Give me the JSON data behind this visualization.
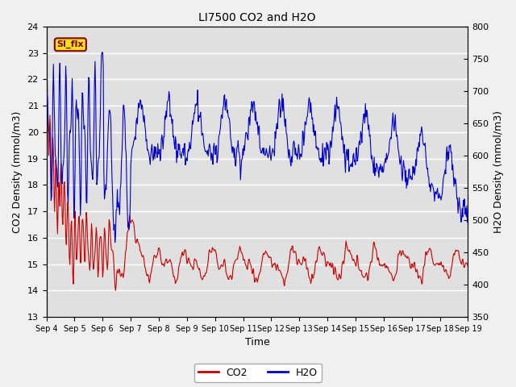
{
  "title": "LI7500 CO2 and H2O",
  "xlabel": "Time",
  "ylabel_left": "CO2 Density (mmol/m3)",
  "ylabel_right": "H2O Density (mmol/m3)",
  "ylim_left": [
    13.0,
    24.0
  ],
  "ylim_right": [
    350,
    800
  ],
  "yticks_left": [
    13.0,
    14.0,
    15.0,
    16.0,
    17.0,
    18.0,
    19.0,
    20.0,
    21.0,
    22.0,
    23.0,
    24.0
  ],
  "yticks_right": [
    350,
    400,
    450,
    500,
    550,
    600,
    650,
    700,
    750,
    800
  ],
  "xtick_labels": [
    "Sep 4",
    "Sep 5",
    "Sep 6",
    "Sep 7",
    "Sep 8",
    "Sep 9",
    "Sep 10",
    "Sep 11",
    "Sep 12",
    "Sep 13",
    "Sep 14",
    "Sep 15",
    "Sep 16",
    "Sep 17",
    "Sep 18",
    "Sep 19"
  ],
  "legend_label_co2": "CO2",
  "legend_label_h2o": "H2O",
  "annotation_text": "SI_flx",
  "plot_bg_color": "#e0e0e0",
  "fig_bg_color": "#f0f0f0",
  "co2_color": "#cc0000",
  "h2o_color": "#0000cc",
  "grid_color": "#ffffff",
  "annotation_bg": "#f0e020",
  "annotation_border": "#8b0000",
  "n_days": 15,
  "pts_per_day": 48
}
